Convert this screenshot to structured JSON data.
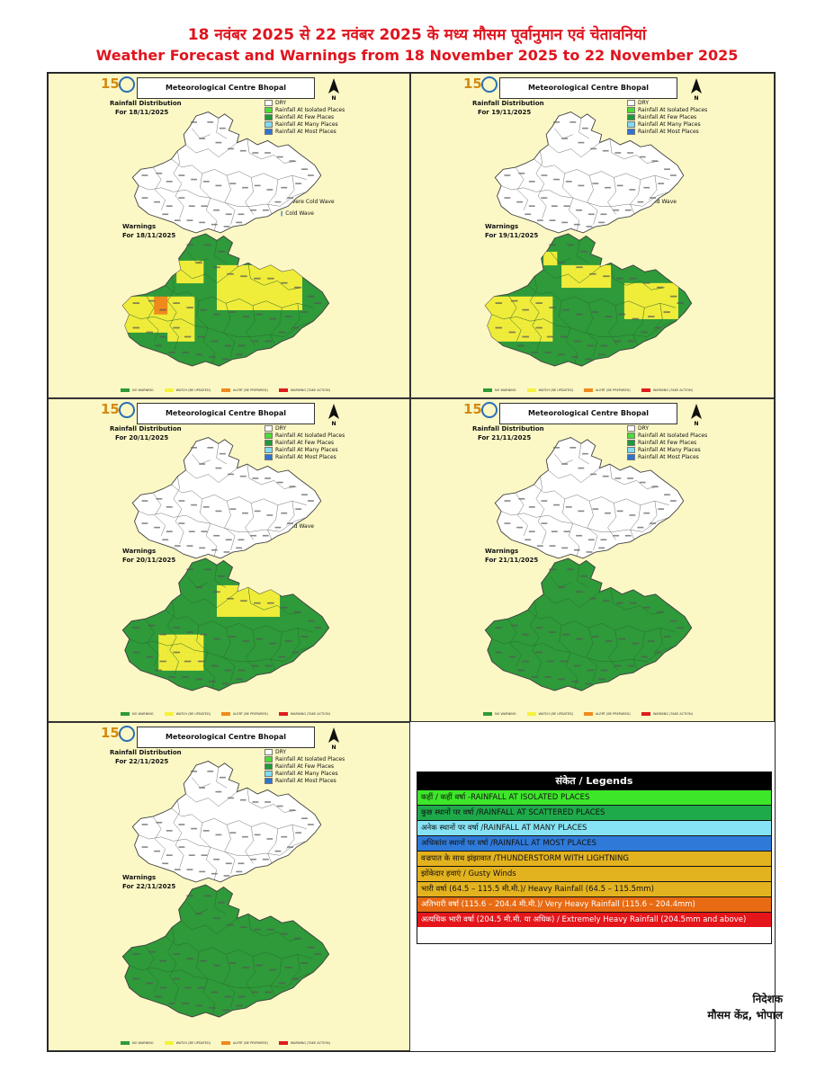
{
  "header": {
    "title_hindi": "18 नवंबर 2025 से 22 नवंबर 2025 के मध्य मौसम पूर्वानुमान एवं चेतावनियां",
    "title_english": "Weather Forecast and Warnings from 18 November 2025 to 22 November 2025"
  },
  "panel_common": {
    "logo_number": "150",
    "centre_name": "Meteorological Centre Bhopal",
    "north_label": "N",
    "rainfall_heading": "Rainfall Distribution",
    "warnings_heading": "Warnings",
    "rain_legend": [
      "DRY",
      "Rainfall At Isolated Places",
      "Rainfall At Few Places",
      "Rainfall At Many Places",
      "Rainfall At Most Places"
    ],
    "rain_legend_colors": [
      "#ffffff",
      "#4ddc36",
      "#1f9a3a",
      "#7fdcf5",
      "#2f74d0"
    ],
    "warning_legend": [
      "NO WARNING",
      "WATCH (BE UPDATED)",
      "ALERT (BE PREPARED)",
      "WARNING (TAKE ACTION)"
    ],
    "warning_legend_colors": [
      "#2e9a3a",
      "#f5f23a",
      "#f08a1c",
      "#e01b1b"
    ]
  },
  "panels": [
    {
      "date": "For 18/11/2025",
      "wave_labels": [
        "Severe Cold Wave",
        "Cold Wave"
      ],
      "warning_mix": "cold-wave-west-orange"
    },
    {
      "date": "For 19/11/2025",
      "wave_labels": [
        "Cold Wave"
      ],
      "warning_mix": "cold-wave-west-east"
    },
    {
      "date": "For 20/11/2025",
      "wave_labels": [
        "Cold Wave"
      ],
      "warning_mix": "cold-wave-partial"
    },
    {
      "date": "For 21/11/2025",
      "wave_labels": [],
      "warning_mix": "no-warning"
    },
    {
      "date": "For 22/11/2025",
      "wave_labels": [],
      "warning_mix": "no-warning"
    }
  ],
  "legends_table": {
    "heading": "संकेत / Legends",
    "rows": [
      {
        "text": "कहीं / कहीं वर्षा -RAINFALL AT ISOLATED PLACES",
        "color": "#3ee62a"
      },
      {
        "text": "कुछ स्थानों पर वर्षा /RAINFALL AT SCATTERED PLACES",
        "color": "#1eaa4a"
      },
      {
        "text": "अनेक स्थानों पर वर्षा /RAINFALL AT MANY PLACES",
        "color": "#86e3f5"
      },
      {
        "text": "अधिकांश स्थानों पर वर्षा  /RAINFALL AT MOST PLACES",
        "color": "#2f7ad8"
      },
      {
        "text": "वज्रपात के साथ झंझावात  /THUNDERSTORM WITH LIGHTNING",
        "color": "#e3b21f"
      },
      {
        "text": "झोंकेदार हवाएं / Gusty Winds",
        "color": "#e3b21f"
      },
      {
        "text": "भारी वर्षा (64.5 – 115.5 मी.मी.)/ Heavy Rainfall (64.5 – 115.5mm)",
        "color": "#e3b21f"
      },
      {
        "text": "अतिभारी वर्षा (115.6 – 204.4 मी.मी.)/ Very Heavy Rainfall (115.6 – 204.4mm)",
        "color": "#e86a12"
      },
      {
        "text": "अत्यधिक भारी वर्षा (204.5 मी.मी. या अधिक) / Extremely Heavy Rainfall (204.5mm and above)",
        "color": "#e4161b"
      }
    ]
  },
  "signature": {
    "line1": "निदेशक",
    "line2": "मौसम केंद्र, भोपाल"
  }
}
